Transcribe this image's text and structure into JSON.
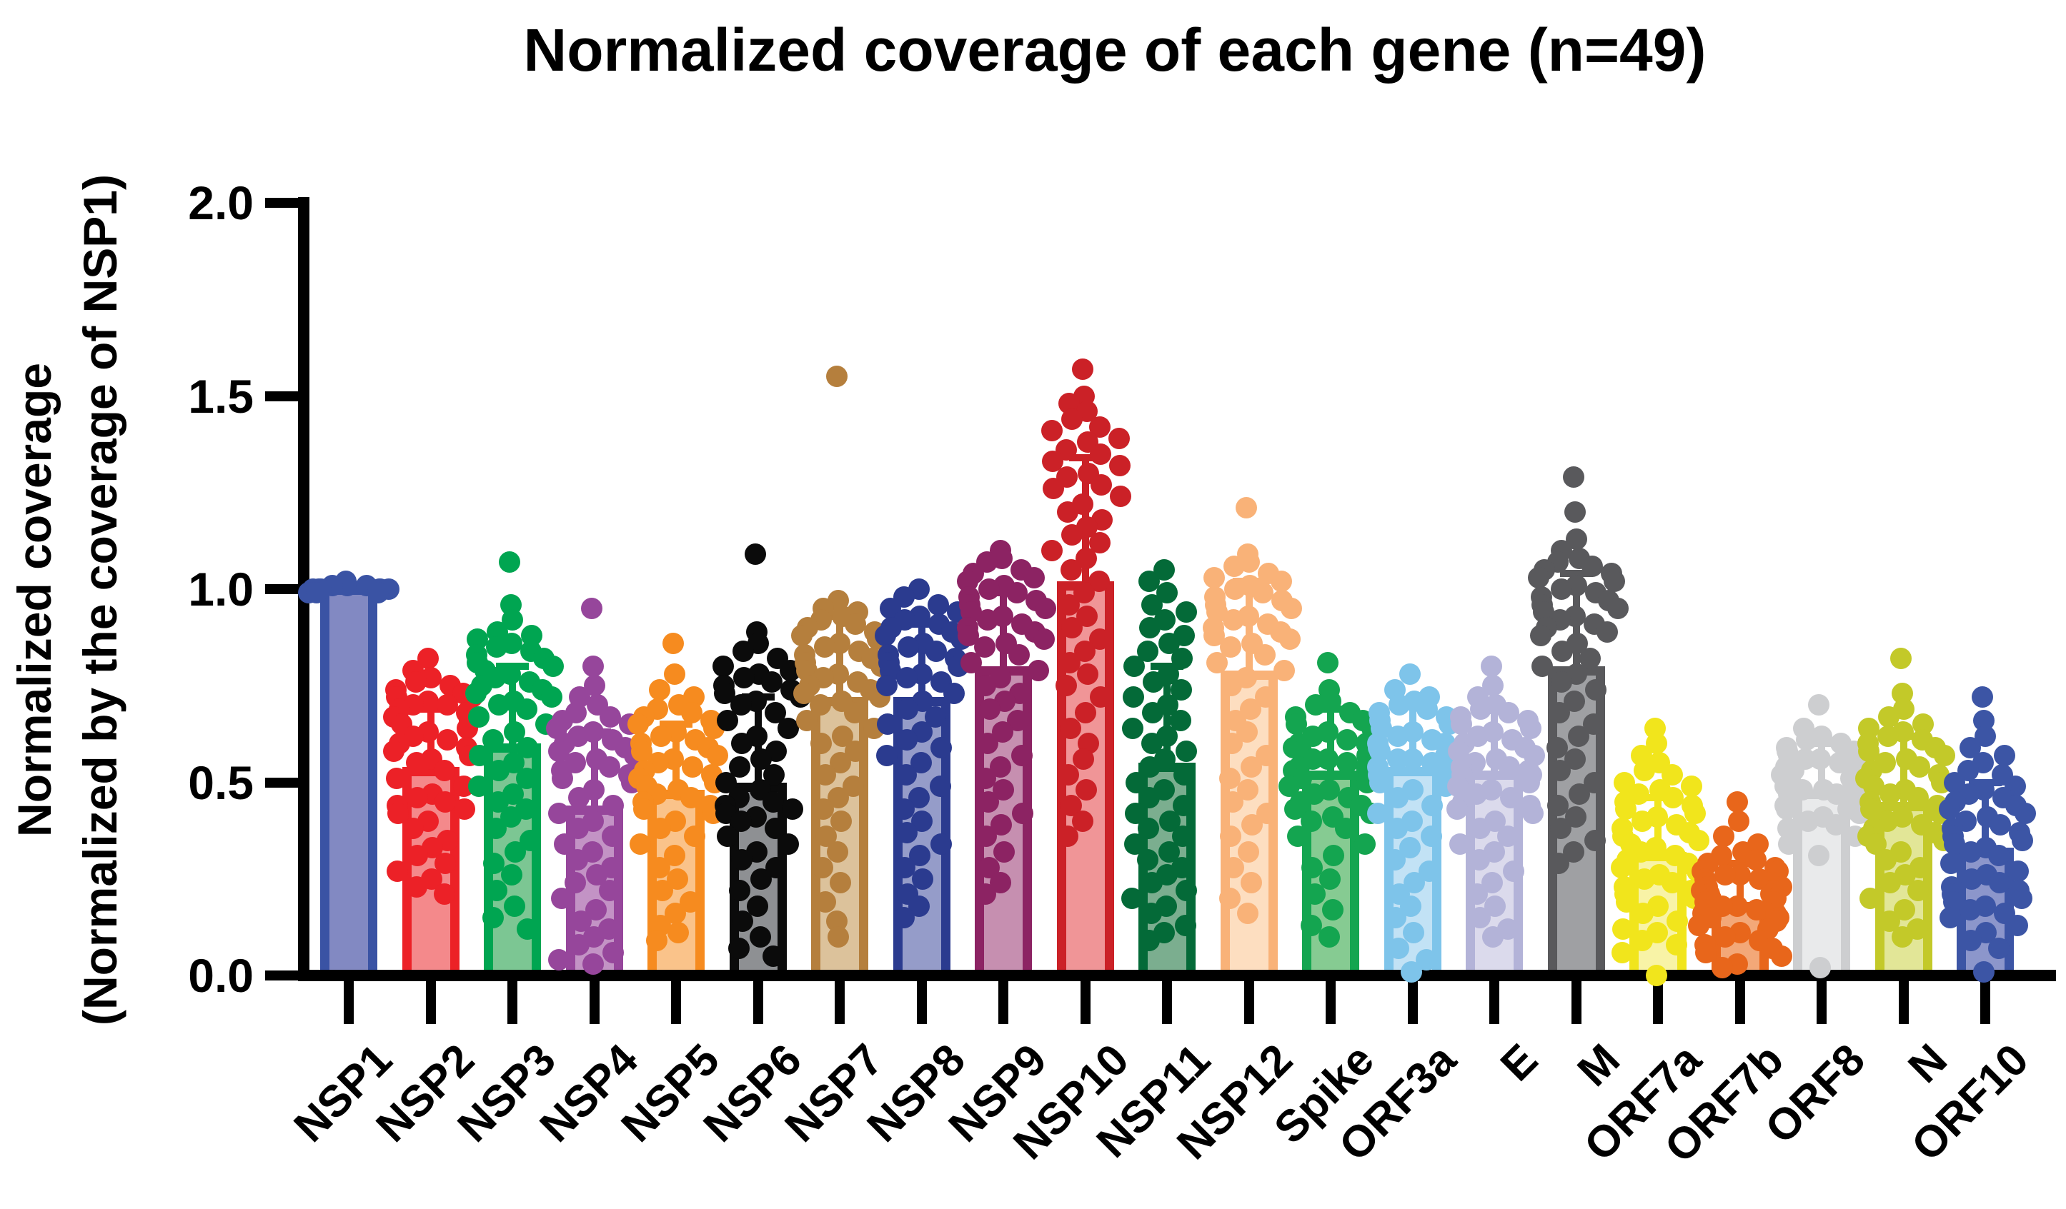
{
  "title": "Normalized coverage of each gene (n=49)",
  "y_axis": {
    "label_line1": "Normalized coverage",
    "label_line2": "(Normalized by the coverage of NSP1)",
    "ticks": [
      "2.0",
      "1.5",
      "1.0",
      "0.5",
      "0.0"
    ],
    "tick_values": [
      2.0,
      1.5,
      1.0,
      0.5,
      0.0
    ]
  },
  "chart_data": {
    "type": "bar",
    "subtype": "bar-with-jittered-points-and-sd-errorbars",
    "title": "Normalized coverage of each gene (n=49)",
    "xlabel": "",
    "ylabel": "Normalized coverage (Normalized by the coverage of NSP1)",
    "ylim": [
      0.0,
      2.0
    ],
    "grid": false,
    "legend": "none",
    "n_per_group": 49,
    "categories": [
      "NSP1",
      "NSP2",
      "NSP3",
      "NSP4",
      "NSP5",
      "NSP6",
      "NSP7",
      "NSP8",
      "NSP9",
      "NSP10",
      "NSP11",
      "NSP12",
      "Spike",
      "ORF3a",
      "E",
      "M",
      "ORF7a",
      "ORF7b",
      "ORF8",
      "N",
      "ORF10"
    ],
    "genes": [
      {
        "label": "NSP1",
        "color": "#3A53A4",
        "fill": "#8289C2",
        "mean": 1.01,
        "sd": 0.0,
        "points": [
          1.02,
          1.01,
          1.01,
          1.01,
          1.0,
          1.0,
          1.0,
          1.0,
          1.0,
          1.0,
          0.99,
          0.99,
          0.99
        ]
      },
      {
        "label": "NSP2",
        "color": "#EC2127",
        "fill": "#F4898B",
        "mean": 0.54,
        "sd": 0.15,
        "points": [
          0.82,
          0.79,
          0.77,
          0.76,
          0.75,
          0.74,
          0.73,
          0.72,
          0.72,
          0.71,
          0.7,
          0.7,
          0.69,
          0.68,
          0.67,
          0.66,
          0.65,
          0.64,
          0.63,
          0.62,
          0.61,
          0.6,
          0.59,
          0.58,
          0.57,
          0.56,
          0.55,
          0.53,
          0.51,
          0.49,
          0.47,
          0.46,
          0.45,
          0.44,
          0.43,
          0.42,
          0.4,
          0.38,
          0.35,
          0.33,
          0.31,
          0.29,
          0.27,
          0.25,
          0.23,
          0.21
        ]
      },
      {
        "label": "NSP3",
        "color": "#00A551",
        "fill": "#7CC693",
        "mean": 0.6,
        "sd": 0.2,
        "points": [
          1.07,
          0.96,
          0.92,
          0.89,
          0.88,
          0.87,
          0.86,
          0.85,
          0.84,
          0.83,
          0.82,
          0.81,
          0.8,
          0.79,
          0.78,
          0.77,
          0.76,
          0.75,
          0.74,
          0.73,
          0.72,
          0.71,
          0.7,
          0.69,
          0.67,
          0.65,
          0.63,
          0.61,
          0.59,
          0.57,
          0.55,
          0.53,
          0.51,
          0.49,
          0.47,
          0.45,
          0.43,
          0.41,
          0.38,
          0.35,
          0.32,
          0.29,
          0.26,
          0.22,
          0.18,
          0.15,
          0.12
        ]
      },
      {
        "label": "NSP4",
        "color": "#96469B",
        "fill": "#C393C5",
        "mean": 0.44,
        "sd": 0.19,
        "points": [
          0.95,
          0.8,
          0.75,
          0.72,
          0.7,
          0.68,
          0.67,
          0.66,
          0.65,
          0.64,
          0.63,
          0.62,
          0.61,
          0.6,
          0.59,
          0.58,
          0.57,
          0.56,
          0.55,
          0.54,
          0.53,
          0.52,
          0.51,
          0.5,
          0.48,
          0.46,
          0.44,
          0.42,
          0.4,
          0.38,
          0.36,
          0.34,
          0.32,
          0.3,
          0.28,
          0.26,
          0.24,
          0.22,
          0.2,
          0.17,
          0.14,
          0.12,
          0.1,
          0.08,
          0.06,
          0.04,
          0.03
        ]
      },
      {
        "label": "NSP5",
        "color": "#F68B1F",
        "fill": "#FAC38A",
        "mean": 0.48,
        "sd": 0.17,
        "points": [
          0.86,
          0.78,
          0.74,
          0.72,
          0.7,
          0.69,
          0.68,
          0.67,
          0.66,
          0.65,
          0.64,
          0.63,
          0.62,
          0.61,
          0.6,
          0.59,
          0.58,
          0.57,
          0.56,
          0.55,
          0.54,
          0.53,
          0.52,
          0.51,
          0.5,
          0.49,
          0.48,
          0.47,
          0.46,
          0.45,
          0.44,
          0.43,
          0.42,
          0.4,
          0.38,
          0.36,
          0.34,
          0.31,
          0.28,
          0.25,
          0.22,
          0.19,
          0.16,
          0.13,
          0.11,
          0.09
        ]
      },
      {
        "label": "NSP6",
        "color": "#0B0B0B",
        "fill": "#8E9093",
        "mean": 0.5,
        "sd": 0.22,
        "points": [
          1.09,
          0.89,
          0.86,
          0.84,
          0.82,
          0.8,
          0.79,
          0.78,
          0.77,
          0.76,
          0.75,
          0.74,
          0.73,
          0.72,
          0.71,
          0.7,
          0.68,
          0.66,
          0.64,
          0.62,
          0.6,
          0.58,
          0.56,
          0.54,
          0.52,
          0.5,
          0.48,
          0.46,
          0.45,
          0.44,
          0.43,
          0.42,
          0.41,
          0.4,
          0.38,
          0.36,
          0.34,
          0.32,
          0.3,
          0.28,
          0.25,
          0.22,
          0.18,
          0.14,
          0.1,
          0.07,
          0.05
        ]
      },
      {
        "label": "NSP7",
        "color": "#B57F3D",
        "fill": "#DCC29B",
        "mean": 0.72,
        "sd": 0.21,
        "points": [
          1.55,
          0.97,
          0.95,
          0.94,
          0.93,
          0.92,
          0.91,
          0.9,
          0.89,
          0.88,
          0.87,
          0.86,
          0.85,
          0.84,
          0.83,
          0.82,
          0.81,
          0.8,
          0.79,
          0.78,
          0.77,
          0.76,
          0.75,
          0.74,
          0.73,
          0.72,
          0.71,
          0.7,
          0.68,
          0.66,
          0.64,
          0.62,
          0.6,
          0.58,
          0.55,
          0.52,
          0.49,
          0.46,
          0.43,
          0.4,
          0.36,
          0.32,
          0.28,
          0.24,
          0.19,
          0.14,
          0.1
        ]
      },
      {
        "label": "NSP8",
        "color": "#2B3B8F",
        "fill": "#959CC9",
        "mean": 0.72,
        "sd": 0.19,
        "points": [
          1.0,
          0.98,
          0.96,
          0.95,
          0.94,
          0.93,
          0.92,
          0.91,
          0.9,
          0.89,
          0.88,
          0.87,
          0.86,
          0.85,
          0.84,
          0.83,
          0.82,
          0.81,
          0.8,
          0.79,
          0.78,
          0.77,
          0.76,
          0.75,
          0.73,
          0.71,
          0.69,
          0.67,
          0.65,
          0.63,
          0.61,
          0.59,
          0.57,
          0.55,
          0.52,
          0.49,
          0.46,
          0.43,
          0.4,
          0.37,
          0.34,
          0.31,
          0.28,
          0.25,
          0.21,
          0.18,
          0.15
        ]
      },
      {
        "label": "NSP9",
        "color": "#8C2363",
        "fill": "#C68FB0",
        "mean": 0.8,
        "sd": 0.19,
        "points": [
          1.1,
          1.08,
          1.07,
          1.05,
          1.04,
          1.03,
          1.02,
          1.01,
          1.0,
          0.99,
          0.98,
          0.97,
          0.96,
          0.95,
          0.94,
          0.93,
          0.92,
          0.91,
          0.9,
          0.89,
          0.88,
          0.87,
          0.86,
          0.85,
          0.83,
          0.81,
          0.79,
          0.77,
          0.75,
          0.73,
          0.71,
          0.69,
          0.66,
          0.63,
          0.6,
          0.57,
          0.54,
          0.51,
          0.48,
          0.45,
          0.42,
          0.39,
          0.36,
          0.32,
          0.28,
          0.24,
          0.21
        ]
      },
      {
        "label": "NSP10",
        "color": "#CB2127",
        "fill": "#F09597",
        "mean": 1.02,
        "sd": 0.32,
        "points": [
          1.57,
          1.5,
          1.48,
          1.46,
          1.44,
          1.42,
          1.41,
          1.39,
          1.38,
          1.36,
          1.35,
          1.33,
          1.32,
          1.3,
          1.29,
          1.27,
          1.26,
          1.24,
          1.22,
          1.2,
          1.18,
          1.16,
          1.14,
          1.12,
          1.1,
          1.08,
          1.05,
          1.02,
          0.99,
          0.96,
          0.93,
          0.9,
          0.87,
          0.84,
          0.81,
          0.78,
          0.75,
          0.72,
          0.68,
          0.64,
          0.6,
          0.56,
          0.52,
          0.48,
          0.44,
          0.4,
          0.36
        ]
      },
      {
        "label": "NSP11",
        "color": "#046A38",
        "fill": "#7BAE8F",
        "mean": 0.55,
        "sd": 0.25,
        "points": [
          1.05,
          1.02,
          0.99,
          0.96,
          0.94,
          0.92,
          0.9,
          0.88,
          0.86,
          0.84,
          0.82,
          0.8,
          0.78,
          0.76,
          0.74,
          0.72,
          0.7,
          0.68,
          0.66,
          0.64,
          0.62,
          0.6,
          0.58,
          0.56,
          0.54,
          0.52,
          0.5,
          0.48,
          0.46,
          0.44,
          0.42,
          0.4,
          0.38,
          0.36,
          0.34,
          0.32,
          0.3,
          0.28,
          0.26,
          0.24,
          0.22,
          0.2,
          0.18,
          0.16,
          0.13,
          0.11,
          0.09
        ]
      },
      {
        "label": "NSP12",
        "color": "#F9B278",
        "fill": "#FDDEC0",
        "mean": 0.79,
        "sd": 0.23,
        "points": [
          1.21,
          1.09,
          1.07,
          1.06,
          1.04,
          1.03,
          1.02,
          1.01,
          1.0,
          0.99,
          0.98,
          0.97,
          0.96,
          0.95,
          0.94,
          0.93,
          0.92,
          0.91,
          0.9,
          0.89,
          0.88,
          0.87,
          0.86,
          0.85,
          0.83,
          0.81,
          0.79,
          0.77,
          0.75,
          0.72,
          0.69,
          0.66,
          0.63,
          0.6,
          0.57,
          0.54,
          0.51,
          0.48,
          0.45,
          0.42,
          0.39,
          0.36,
          0.32,
          0.28,
          0.24,
          0.2,
          0.16
        ]
      },
      {
        "label": "Spike",
        "color": "#14A550",
        "fill": "#86CB92",
        "mean": 0.53,
        "sd": 0.16,
        "points": [
          0.81,
          0.74,
          0.71,
          0.7,
          0.68,
          0.67,
          0.66,
          0.65,
          0.64,
          0.63,
          0.62,
          0.61,
          0.6,
          0.6,
          0.59,
          0.58,
          0.58,
          0.57,
          0.56,
          0.56,
          0.55,
          0.54,
          0.54,
          0.53,
          0.52,
          0.51,
          0.5,
          0.49,
          0.48,
          0.47,
          0.46,
          0.45,
          0.44,
          0.43,
          0.42,
          0.41,
          0.4,
          0.38,
          0.36,
          0.34,
          0.31,
          0.28,
          0.25,
          0.21,
          0.17,
          0.13,
          0.1
        ]
      },
      {
        "label": "ORF3a",
        "color": "#7EC4EA",
        "fill": "#C2E2F5",
        "mean": 0.54,
        "sd": 0.17,
        "points": [
          0.78,
          0.74,
          0.72,
          0.71,
          0.7,
          0.69,
          0.68,
          0.67,
          0.66,
          0.65,
          0.64,
          0.63,
          0.62,
          0.61,
          0.6,
          0.6,
          0.59,
          0.58,
          0.58,
          0.57,
          0.56,
          0.56,
          0.55,
          0.54,
          0.53,
          0.52,
          0.51,
          0.5,
          0.49,
          0.48,
          0.46,
          0.44,
          0.42,
          0.4,
          0.38,
          0.36,
          0.33,
          0.3,
          0.27,
          0.24,
          0.21,
          0.18,
          0.15,
          0.11,
          0.07,
          0.04,
          0.01
        ]
      },
      {
        "label": "E",
        "color": "#B3B3D8",
        "fill": "#DBDAEC",
        "mean": 0.53,
        "sd": 0.16,
        "points": [
          0.8,
          0.75,
          0.72,
          0.7,
          0.69,
          0.68,
          0.67,
          0.66,
          0.65,
          0.64,
          0.63,
          0.62,
          0.61,
          0.6,
          0.59,
          0.58,
          0.57,
          0.56,
          0.55,
          0.54,
          0.54,
          0.53,
          0.52,
          0.52,
          0.51,
          0.5,
          0.49,
          0.48,
          0.47,
          0.46,
          0.45,
          0.44,
          0.43,
          0.42,
          0.4,
          0.38,
          0.36,
          0.34,
          0.32,
          0.3,
          0.27,
          0.24,
          0.21,
          0.18,
          0.15,
          0.12,
          0.1
        ]
      },
      {
        "label": "M",
        "color": "#59595C",
        "fill": "#9FA0A3",
        "mean": 0.8,
        "sd": 0.24,
        "points": [
          1.29,
          1.2,
          1.13,
          1.1,
          1.08,
          1.07,
          1.06,
          1.05,
          1.04,
          1.03,
          1.02,
          1.01,
          1.0,
          0.99,
          0.98,
          0.97,
          0.96,
          0.95,
          0.94,
          0.93,
          0.92,
          0.91,
          0.9,
          0.89,
          0.88,
          0.86,
          0.84,
          0.82,
          0.8,
          0.78,
          0.76,
          0.74,
          0.71,
          0.68,
          0.65,
          0.62,
          0.59,
          0.56,
          0.53,
          0.5,
          0.47,
          0.44,
          0.41,
          0.38,
          0.35,
          0.32,
          0.29
        ]
      },
      {
        "label": "ORF7a",
        "color": "#F1E51C",
        "fill": "#F8F3A6",
        "mean": 0.32,
        "sd": 0.14,
        "points": [
          0.64,
          0.6,
          0.57,
          0.55,
          0.53,
          0.52,
          0.5,
          0.49,
          0.48,
          0.47,
          0.46,
          0.45,
          0.44,
          0.43,
          0.42,
          0.41,
          0.4,
          0.39,
          0.38,
          0.37,
          0.36,
          0.35,
          0.34,
          0.33,
          0.32,
          0.31,
          0.3,
          0.29,
          0.28,
          0.27,
          0.26,
          0.25,
          0.24,
          0.23,
          0.22,
          0.21,
          0.2,
          0.19,
          0.18,
          0.16,
          0.14,
          0.12,
          0.11,
          0.09,
          0.08,
          0.06,
          0.0
        ]
      },
      {
        "label": "ORF7b",
        "color": "#E8661B",
        "fill": "#F3A878",
        "mean": 0.19,
        "sd": 0.1,
        "points": [
          0.45,
          0.4,
          0.36,
          0.34,
          0.32,
          0.31,
          0.3,
          0.29,
          0.28,
          0.27,
          0.27,
          0.26,
          0.26,
          0.25,
          0.25,
          0.24,
          0.24,
          0.23,
          0.23,
          0.22,
          0.22,
          0.21,
          0.21,
          0.2,
          0.2,
          0.19,
          0.19,
          0.18,
          0.18,
          0.17,
          0.17,
          0.16,
          0.16,
          0.15,
          0.15,
          0.14,
          0.13,
          0.12,
          0.11,
          0.1,
          0.09,
          0.08,
          0.07,
          0.06,
          0.05,
          0.03,
          0.02
        ]
      },
      {
        "label": "ORF8",
        "color": "#CDCED0",
        "fill": "#E9EAEB",
        "mean": 0.48,
        "sd": 0.12,
        "points": [
          0.7,
          0.64,
          0.62,
          0.61,
          0.6,
          0.59,
          0.58,
          0.58,
          0.57,
          0.57,
          0.56,
          0.56,
          0.55,
          0.55,
          0.54,
          0.54,
          0.53,
          0.53,
          0.52,
          0.52,
          0.51,
          0.51,
          0.5,
          0.5,
          0.49,
          0.49,
          0.48,
          0.48,
          0.47,
          0.47,
          0.46,
          0.46,
          0.45,
          0.45,
          0.44,
          0.44,
          0.43,
          0.43,
          0.42,
          0.41,
          0.4,
          0.39,
          0.38,
          0.36,
          0.34,
          0.31,
          0.02
        ]
      },
      {
        "label": "N",
        "color": "#C3C929",
        "fill": "#E2E697",
        "mean": 0.45,
        "sd": 0.17,
        "points": [
          0.82,
          0.73,
          0.69,
          0.67,
          0.65,
          0.64,
          0.63,
          0.62,
          0.61,
          0.6,
          0.59,
          0.58,
          0.57,
          0.56,
          0.55,
          0.54,
          0.53,
          0.52,
          0.51,
          0.5,
          0.49,
          0.48,
          0.47,
          0.46,
          0.45,
          0.44,
          0.43,
          0.42,
          0.41,
          0.4,
          0.39,
          0.38,
          0.37,
          0.36,
          0.35,
          0.34,
          0.32,
          0.3,
          0.28,
          0.26,
          0.24,
          0.22,
          0.2,
          0.17,
          0.14,
          0.12,
          0.1
        ]
      },
      {
        "label": "ORF10",
        "color": "#3C55A5",
        "fill": "#8C96CB",
        "mean": 0.33,
        "sd": 0.17,
        "points": [
          0.72,
          0.66,
          0.62,
          0.59,
          0.57,
          0.55,
          0.53,
          0.52,
          0.5,
          0.49,
          0.48,
          0.47,
          0.46,
          0.45,
          0.44,
          0.43,
          0.42,
          0.41,
          0.4,
          0.39,
          0.38,
          0.37,
          0.36,
          0.35,
          0.34,
          0.33,
          0.32,
          0.31,
          0.29,
          0.27,
          0.26,
          0.25,
          0.24,
          0.23,
          0.22,
          0.21,
          0.2,
          0.19,
          0.18,
          0.17,
          0.16,
          0.15,
          0.13,
          0.11,
          0.09,
          0.07,
          0.01
        ]
      }
    ]
  }
}
